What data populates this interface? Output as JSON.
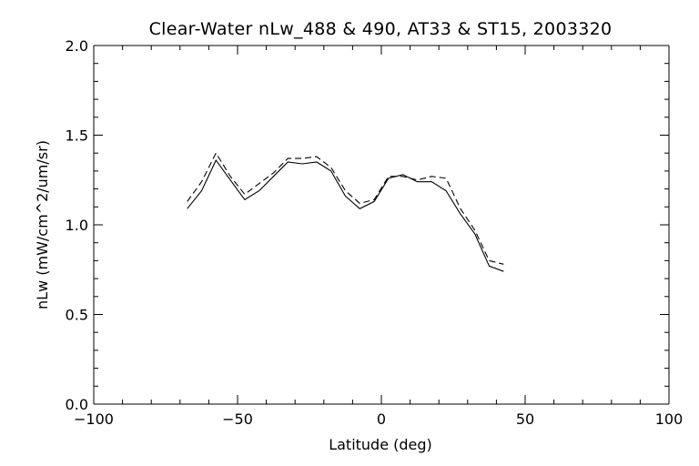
{
  "chart_data": {
    "type": "line",
    "title": "Clear-Water nLw_488 & 490, AT33 & ST15, 2003320",
    "xlabel": "Latitude (deg)",
    "ylabel": "nLw (mW/cm^2/um/sr)",
    "xlim": [
      -100,
      100
    ],
    "ylim": [
      0.0,
      2.0
    ],
    "x_ticks": [
      "−100",
      "−50",
      "0",
      "50",
      "100"
    ],
    "x_tick_values": [
      -100,
      -50,
      0,
      50,
      100
    ],
    "y_ticks": [
      "0.0",
      "0.5",
      "1.0",
      "1.5",
      "2.0"
    ],
    "y_tick_values": [
      0.0,
      0.5,
      1.0,
      1.5,
      2.0
    ],
    "grid": false,
    "series": [
      {
        "style": "solid",
        "x": [
          -67.5,
          -62.5,
          -57.5,
          -52.5,
          -47.5,
          -42.5,
          -37.5,
          -32.5,
          -27.5,
          -22.5,
          -17.5,
          -12.5,
          -7.5,
          -2.5,
          2.5,
          7.5,
          12.5,
          17.5,
          22.5,
          27.5,
          32.5,
          37.5,
          42.5
        ],
        "y": [
          1.09,
          1.19,
          1.36,
          1.25,
          1.14,
          1.19,
          1.27,
          1.35,
          1.34,
          1.35,
          1.3,
          1.16,
          1.09,
          1.13,
          1.26,
          1.28,
          1.24,
          1.24,
          1.19,
          1.06,
          0.95,
          0.77,
          0.74
        ]
      },
      {
        "style": "dashed",
        "x": [
          -67.5,
          -62.5,
          -57.5,
          -52.5,
          -47.5,
          -42.5,
          -37.5,
          -32.5,
          -27.5,
          -22.5,
          -17.5,
          -12.5,
          -7.5,
          -2.5,
          2.5,
          7.5,
          12.5,
          17.5,
          22.5,
          27.5,
          32.5,
          37.5,
          42.5
        ],
        "y": [
          1.13,
          1.24,
          1.4,
          1.27,
          1.17,
          1.23,
          1.29,
          1.37,
          1.37,
          1.38,
          1.32,
          1.19,
          1.12,
          1.14,
          1.27,
          1.27,
          1.25,
          1.27,
          1.26,
          1.09,
          0.97,
          0.8,
          0.78
        ]
      }
    ]
  }
}
